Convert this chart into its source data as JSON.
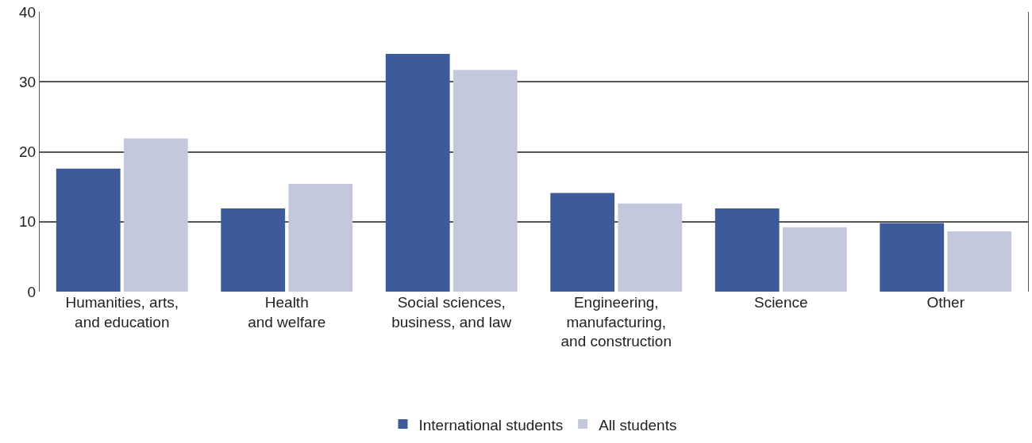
{
  "chart_data": {
    "type": "bar",
    "categories": [
      "Humanities, arts,\nand education",
      "Health\nand welfare",
      "Social sciences,\nbusiness, and law",
      "Engineering,\nmanufacturing,\nand construction",
      "Science",
      "Other"
    ],
    "series": [
      {
        "name": "International students",
        "color": "#3d5b9b",
        "values": [
          17.6,
          11.9,
          34.0,
          14.1,
          11.9,
          9.8
        ]
      },
      {
        "name": "All students",
        "color": "#c3c8dc",
        "values": [
          21.9,
          15.4,
          31.7,
          12.6,
          9.2,
          8.6
        ]
      }
    ],
    "ylim": [
      0,
      40
    ],
    "yticks": [
      0,
      10,
      20,
      30,
      40
    ],
    "grid": "y",
    "legend": "bottom"
  }
}
